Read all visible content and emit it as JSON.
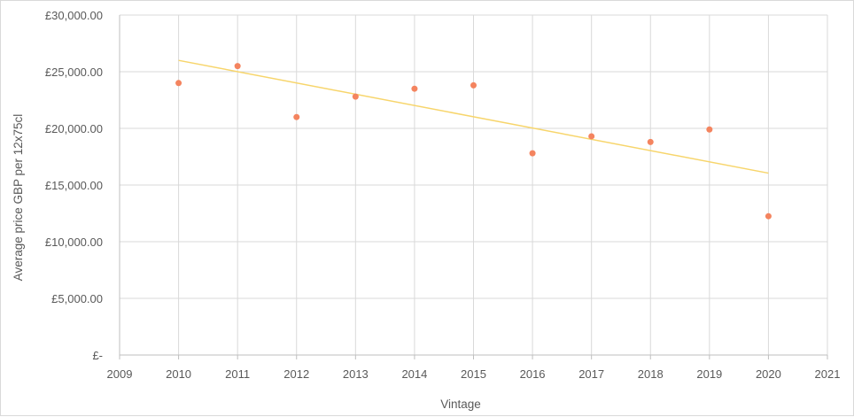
{
  "chart_data": {
    "type": "scatter",
    "title": "",
    "xlabel": "Vintage",
    "ylabel": "Average price GBP per 12x75cl",
    "xlim": [
      2009,
      2021
    ],
    "ylim": [
      0,
      30000
    ],
    "x_ticks": [
      2009,
      2010,
      2011,
      2012,
      2013,
      2014,
      2015,
      2016,
      2017,
      2018,
      2019,
      2020,
      2021
    ],
    "y_ticks": [
      0,
      5000,
      10000,
      15000,
      20000,
      25000,
      30000
    ],
    "y_tick_labels": [
      "£-",
      "£5,000.00",
      "£10,000.00",
      "£15,000.00",
      "£20,000.00",
      "£25,000.00",
      "£30,000.00"
    ],
    "grid": true,
    "legend": "none",
    "series": [
      {
        "x": [
          2010,
          2011,
          2012,
          2013,
          2014,
          2015,
          2016,
          2017,
          2018,
          2019,
          2020
        ],
        "y": [
          24000,
          25500,
          21000,
          22800,
          23500,
          23800,
          17800,
          19300,
          18800,
          19900,
          12250
        ],
        "color": "#f4845f"
      }
    ],
    "trendline": {
      "type": "linear",
      "x": [
        2010,
        2020
      ],
      "y": [
        26000,
        16050
      ],
      "color": "#f7d56b"
    }
  }
}
